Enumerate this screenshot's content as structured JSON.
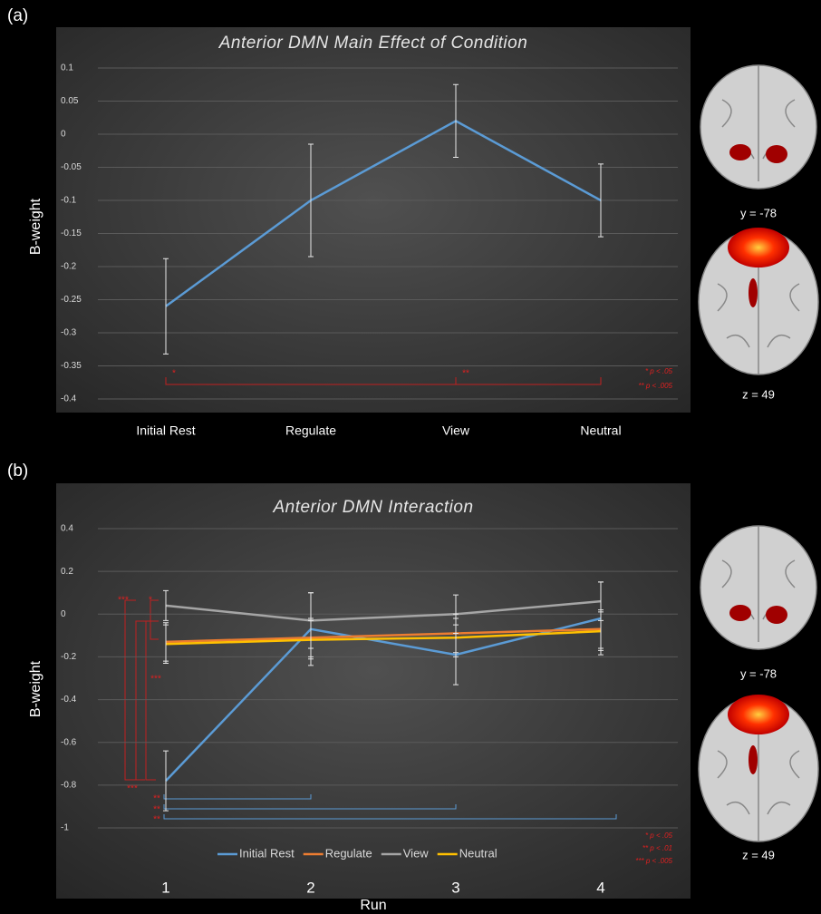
{
  "chart_data": [
    {
      "type": "line",
      "panel_label": "(a)",
      "title": "Anterior DMN Main Effect of Condition",
      "y_label": "B-weight",
      "categories": [
        "Initial Rest",
        "Regulate",
        "View",
        "Neutral"
      ],
      "values": [
        -0.26,
        -0.1,
        0.02,
        -0.1
      ],
      "errors": [
        0.072,
        0.085,
        0.055,
        0.055
      ],
      "color": "#5b9bd5",
      "ylim": [
        -0.4,
        0.1
      ],
      "yticks": [
        0.1,
        0.05,
        0,
        -0.05,
        -0.1,
        -0.15,
        -0.2,
        -0.25,
        -0.3,
        -0.35,
        -0.4
      ],
      "grid": true,
      "annotations": [
        "*",
        "**",
        "* p < .05",
        "** p < .005"
      ],
      "image_labels": [
        "y = -78",
        "z = 49"
      ]
    },
    {
      "type": "line",
      "panel_label": "(b)",
      "title": "Anterior DMN Interaction",
      "x_label": "Run",
      "y_label": "B-weight",
      "categories": [
        "1",
        "2",
        "3",
        "4"
      ],
      "series": [
        {
          "name": "Initial Rest",
          "color": "#5b9bd5",
          "values": [
            -0.78,
            -0.07,
            -0.19,
            -0.02
          ],
          "errors": [
            0.14,
            0.17,
            0.14,
            0.17
          ]
        },
        {
          "name": "Regulate",
          "color": "#ed7d31",
          "values": [
            -0.13,
            -0.11,
            -0.09,
            -0.07
          ],
          "errors": [
            0.09,
            0.09,
            0.09,
            0.09
          ]
        },
        {
          "name": "View",
          "color": "#a5a5a5",
          "values": [
            0.04,
            -0.03,
            0.0,
            0.06
          ],
          "errors": [
            0.07,
            0.13,
            0.09,
            0.09
          ]
        },
        {
          "name": "Neutral",
          "color": "#ffc000",
          "values": [
            -0.14,
            -0.12,
            -0.11,
            -0.08
          ],
          "errors": [
            0.09,
            0.09,
            0.09,
            0.09
          ]
        }
      ],
      "ylim": [
        -1,
        0.4
      ],
      "yticks": [
        0.4,
        0.2,
        0,
        -0.2,
        -0.4,
        -0.6,
        -0.8,
        -1
      ],
      "grid": true,
      "legend": "bottom",
      "annotations": [
        "***",
        "*",
        "***",
        "***",
        "**",
        "**",
        "**",
        "* p < .05",
        "** p < .01",
        "*** p < .005"
      ],
      "image_labels": [
        "y = -78",
        "z = 49"
      ]
    }
  ]
}
